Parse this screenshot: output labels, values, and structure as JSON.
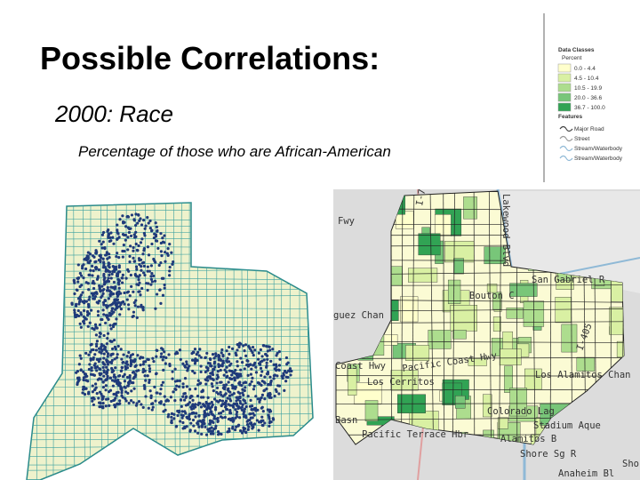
{
  "header": {
    "title": "Possible Correlations:",
    "subtitle": "2000: Race",
    "caption": "Percentage of those who are African-American"
  },
  "legend": {
    "title": "Data Classes",
    "unit": "Percent",
    "classes": [
      "0.0 - 4.4",
      "4.5 - 10.4",
      "10.5 - 19.9",
      "20.0 - 36.6",
      "36.7 - 100.0"
    ],
    "features_title": "Features",
    "features": [
      "Major Road",
      "Street",
      "Stream/Waterbody",
      "Stream/Waterbody"
    ]
  },
  "map_labels": [
    "Fwy",
    "I-710",
    "Lakewood Blvd",
    "San Gabriel R",
    "Bouton C",
    "guez Chan",
    "I-405",
    "Coast Hwy",
    "Pacific Coast Hwy",
    "Los Cerritos",
    "Los Alamitos Chan",
    "Colorado Lag",
    "Stadium Aque",
    "Basn",
    "Pacific Terrace Hbr",
    "Alamitos B",
    "Shore Sg R",
    "Anaheim Bl",
    "Sho"
  ]
}
